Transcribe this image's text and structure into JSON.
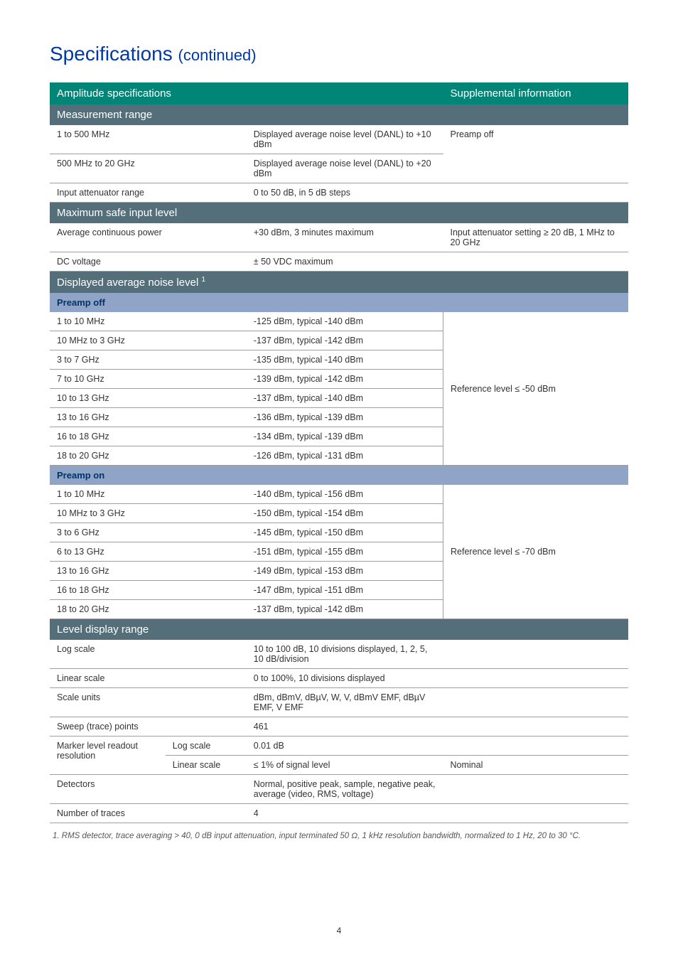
{
  "title_main": "Specifications",
  "title_cont": "(continued)",
  "header_left": "Amplitude specifications",
  "header_right": "Supplemental information",
  "sections": {
    "measurement_range": "Measurement range",
    "max_safe_input": "Maximum safe input level",
    "danl": "Displayed average noise level",
    "danl_sup": "1",
    "level_display": "Level display range",
    "preamp_off": "Preamp off",
    "preamp_on": "Preamp on"
  },
  "rows": {
    "mr1": {
      "c1": "1 to 500 MHz",
      "c3": "Displayed average noise level (DANL) to +10 dBm",
      "c4": "Preamp off"
    },
    "mr2": {
      "c1": "500 MHz to 20 GHz",
      "c3": "Displayed average noise level (DANL) to +20 dBm"
    },
    "mr3": {
      "c1": "Input attenuator range",
      "c3": "0 to 50 dB, in 5 dB steps"
    },
    "ms1": {
      "c1": "Average continuous power",
      "c3": "+30 dBm, 3 minutes maximum",
      "c4": "Input attenuator setting ≥ 20 dB, 1 MHz to 20 GHz"
    },
    "ms2": {
      "c1": "DC voltage",
      "c3": "± 50 VDC maximum"
    },
    "poff_supp": "Reference level ≤ -50 dBm",
    "poff": [
      {
        "c1": "1 to 10 MHz",
        "c3": "-125 dBm, typical -140 dBm"
      },
      {
        "c1": "10 MHz to 3 GHz",
        "c3": "-137 dBm, typical -142 dBm"
      },
      {
        "c1": "3 to 7 GHz",
        "c3": "-135 dBm, typical -140 dBm"
      },
      {
        "c1": "7 to 10 GHz",
        "c3": "-139 dBm, typical -142 dBm"
      },
      {
        "c1": "10 to 13 GHz",
        "c3": "-137 dBm, typical -140 dBm"
      },
      {
        "c1": "13 to 16 GHz",
        "c3": "-136 dBm, typical -139 dBm"
      },
      {
        "c1": "16 to 18 GHz",
        "c3": "-134 dBm, typical -139 dBm"
      },
      {
        "c1": "18 to 20 GHz",
        "c3": "-126 dBm, typical -131 dBm"
      }
    ],
    "pon_supp": "Reference level ≤ -70 dBm",
    "pon": [
      {
        "c1": "1 to 10 MHz",
        "c3": "-140 dBm, typical -156 dBm"
      },
      {
        "c1": "10 MHz to 3 GHz",
        "c3": "-150 dBm, typical -154 dBm"
      },
      {
        "c1": "3 to 6 GHz",
        "c3": "-145 dBm, typical -150 dBm"
      },
      {
        "c1": "6 to 13 GHz",
        "c3": "-151 dBm, typical -155 dBm"
      },
      {
        "c1": "13 to 16 GHz",
        "c3": "-149 dBm, typical -153 dBm"
      },
      {
        "c1": "16 to 18 GHz",
        "c3": "-147 dBm, typical -151 dBm"
      },
      {
        "c1": "18 to 20 GHz",
        "c3": "-137 dBm, typical -142 dBm"
      }
    ],
    "ld1": {
      "c1": "Log scale",
      "c3": "10 to 100 dB, 10 divisions displayed, 1, 2, 5, 10 dB/division"
    },
    "ld2": {
      "c1": "Linear scale",
      "c3": "0 to 100%, 10 divisions displayed"
    },
    "ld3": {
      "c1": "Scale units",
      "c3": "dBm, dBmV, dBµV, W, V, dBmV EMF, dBµV EMF, V EMF"
    },
    "ld4": {
      "c1": "Sweep (trace) points",
      "c3": "461"
    },
    "ld5": {
      "c1": "Marker level readout resolution",
      "c2a": "Log scale",
      "c3a": "0.01 dB",
      "c2b": "Linear scale",
      "c3b": "≤ 1% of signal level",
      "c4b": "Nominal"
    },
    "ld6": {
      "c1": "Detectors",
      "c3": "Normal, positive peak, sample, negative peak, average (video, RMS, voltage)"
    },
    "ld7": {
      "c1": "Number of traces",
      "c3": "4"
    }
  },
  "footnote": "1.   RMS detector, trace averaging > 40, 0 dB input attenuation, input terminated 50 Ω, 1 kHz resolution bandwidth, normalized to 1 Hz, 20 to 30 °C.",
  "page_number": "4",
  "colors": {
    "title": "#0039a6",
    "header_bg": "#008577",
    "section_bg": "#546e7a",
    "subhead_bg": "#90a4c8",
    "subhead_fg": "#003366",
    "border": "#9e9e9e"
  }
}
